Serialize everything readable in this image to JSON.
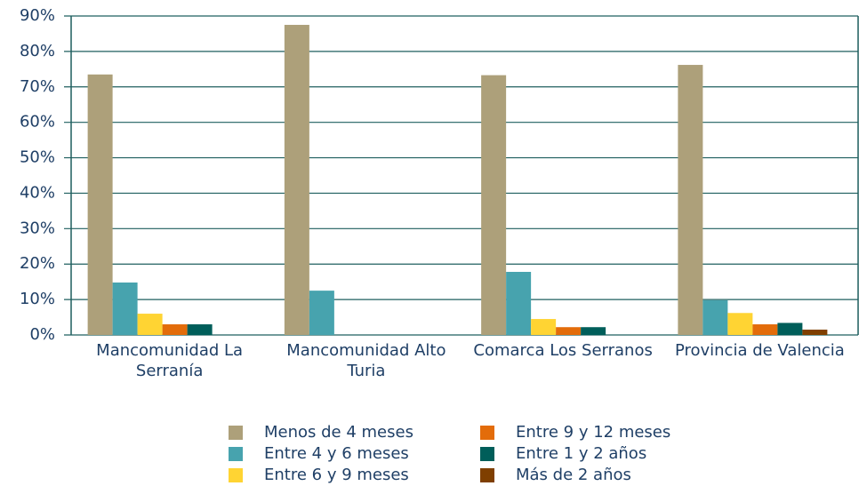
{
  "chart_data": {
    "type": "bar",
    "categories": [
      "Mancomunidad La Serranía",
      "Mancomunidad Alto Turia",
      "Comarca Los Serranos",
      "Provincia de Valencia"
    ],
    "series": [
      {
        "name": "Menos de 4 meses",
        "color": "#ada07a",
        "values": [
          73.5,
          87.5,
          73.3,
          76.2
        ]
      },
      {
        "name": "Entre 4 y 6 meses",
        "color": "#47a3ae",
        "values": [
          14.8,
          12.5,
          17.8,
          9.8
        ]
      },
      {
        "name": "Entre 6 y 9 meses",
        "color": "#ffd433",
        "values": [
          6,
          0,
          4.5,
          6.2
        ]
      },
      {
        "name": "Entre 9 y 12 meses",
        "color": "#e36c0a",
        "values": [
          3,
          0,
          2.2,
          3
        ]
      },
      {
        "name": "Entre 1 y 2 años",
        "color": "#005e5a",
        "values": [
          3,
          0,
          2.2,
          3.4
        ]
      },
      {
        "name": "Más de 2 años",
        "color": "#7f3f00",
        "values": [
          0,
          0,
          0,
          1.5
        ]
      }
    ],
    "ylim": [
      0,
      90
    ],
    "yticks": [
      {
        "value": 0,
        "label": "0%"
      },
      {
        "value": 10,
        "label": "10%"
      },
      {
        "value": 20,
        "label": "20%"
      },
      {
        "value": 30,
        "label": "30%"
      },
      {
        "value": 40,
        "label": "40%"
      },
      {
        "value": 50,
        "label": "50%"
      },
      {
        "value": 60,
        "label": "60%"
      },
      {
        "value": 70,
        "label": "70%"
      },
      {
        "value": 80,
        "label": "80%"
      },
      {
        "value": 90,
        "label": "90%"
      }
    ],
    "grid": true
  }
}
